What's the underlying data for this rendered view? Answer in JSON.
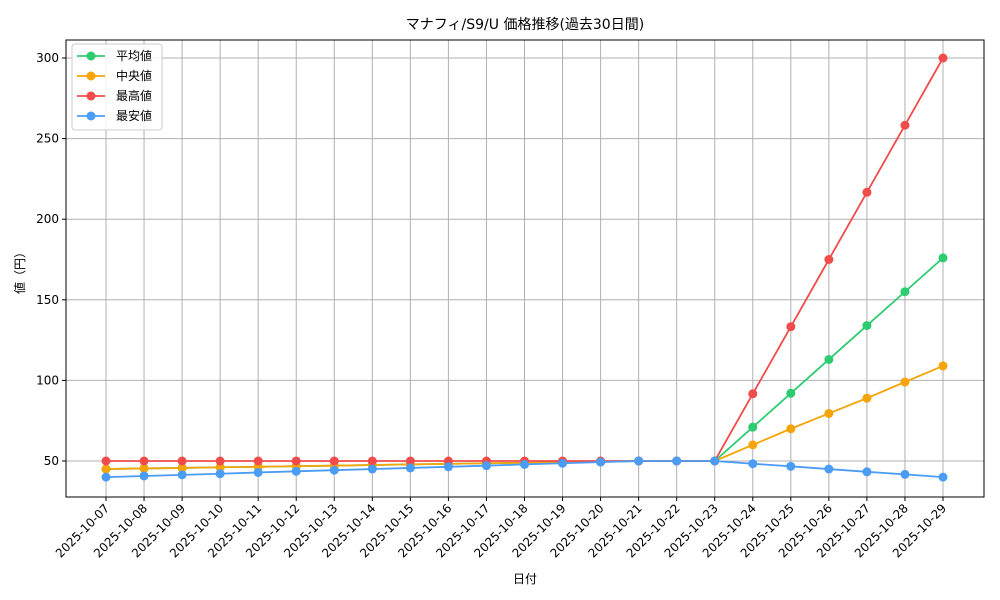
{
  "chart_data": {
    "type": "line",
    "title": "マナフィ/S9/U 価格推移(過去30日間)",
    "xlabel": "日付",
    "ylabel": "値（円）",
    "ylim": [
      27,
      313
    ],
    "yticks": [
      50,
      100,
      150,
      200,
      250,
      300
    ],
    "grid": true,
    "legend_position": "upper left",
    "categories": [
      "2025-10-07",
      "2025-10-08",
      "2025-10-09",
      "2025-10-10",
      "2025-10-11",
      "2025-10-12",
      "2025-10-13",
      "2025-10-14",
      "2025-10-15",
      "2025-10-16",
      "2025-10-17",
      "2025-10-18",
      "2025-10-19",
      "2025-10-20",
      "2025-10-21",
      "2025-10-22",
      "2025-10-23",
      "2025-10-24",
      "2025-10-25",
      "2025-10-26",
      "2025-10-27",
      "2025-10-28",
      "2025-10-29"
    ],
    "series": [
      {
        "name": "平均値",
        "color": "#2ecc71",
        "values": [
          45.0,
          45.4,
          45.7,
          46.1,
          46.4,
          46.8,
          47.1,
          47.5,
          47.9,
          48.2,
          48.6,
          48.9,
          49.3,
          49.6,
          50.0,
          50.0,
          50.0,
          71.0,
          92.0,
          113.0,
          134.0,
          155.0,
          176.0
        ]
      },
      {
        "name": "中央値",
        "color": "#f5a50a",
        "values": [
          45.0,
          45.4,
          45.7,
          46.1,
          46.4,
          46.8,
          47.1,
          47.5,
          47.9,
          48.2,
          48.6,
          48.9,
          49.3,
          49.6,
          50.0,
          50.0,
          50.0,
          60.0,
          70.0,
          79.5,
          89.0,
          99.0,
          109.0
        ]
      },
      {
        "name": "最高値",
        "color": "#f24b4b",
        "values": [
          50,
          50,
          50,
          50,
          50,
          50,
          50,
          50,
          50,
          50,
          50,
          50,
          50,
          50,
          50,
          50,
          50,
          91.7,
          133.3,
          175.0,
          216.7,
          258.3,
          300.0
        ]
      },
      {
        "name": "最安値",
        "color": "#4b9cf5",
        "values": [
          40.0,
          40.7,
          41.4,
          42.1,
          42.9,
          43.6,
          44.3,
          45.0,
          45.7,
          46.4,
          47.1,
          47.9,
          48.6,
          49.3,
          50.0,
          50.0,
          50.0,
          48.3,
          46.7,
          45.0,
          43.3,
          41.7,
          40.0
        ]
      }
    ]
  }
}
